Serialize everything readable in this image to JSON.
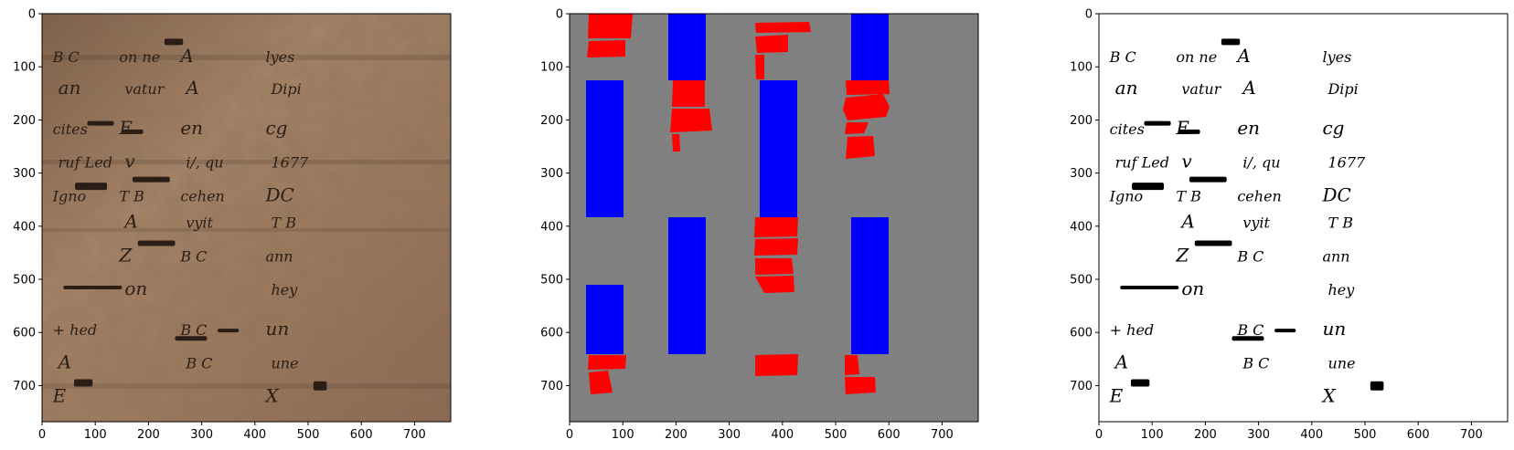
{
  "figure": {
    "panels": [
      {
        "id": "photo",
        "description_kind": "photograph",
        "background": "#a07a5e",
        "ink": "#2a1e16",
        "xticks": [
          "0",
          "100",
          "200",
          "300",
          "400",
          "500",
          "600",
          "700"
        ],
        "yticks": [
          "0",
          "100",
          "200",
          "300",
          "400",
          "500",
          "600",
          "700"
        ]
      },
      {
        "id": "segmentation",
        "background": "#808080",
        "colors": {
          "red": "#ff0000",
          "blue": "#0000ff"
        },
        "xticks": [
          "0",
          "100",
          "200",
          "300",
          "400",
          "500",
          "600",
          "700"
        ],
        "yticks": [
          "0",
          "100",
          "200",
          "300",
          "400",
          "500",
          "600",
          "700"
        ]
      },
      {
        "id": "binarized",
        "background": "#ffffff",
        "ink": "#000000",
        "xticks": [
          "0",
          "100",
          "200",
          "300",
          "400",
          "500",
          "600",
          "700"
        ],
        "yticks": [
          "0",
          "100",
          "200",
          "300",
          "400",
          "500",
          "600",
          "700"
        ]
      }
    ]
  },
  "handwriting": {
    "c0": [
      "B C",
      "an",
      "cites",
      "ruf Led",
      "Igno",
      "",
      "",
      "",
      "+ hed",
      "A",
      "E"
    ],
    "c1": [
      "on ne",
      "vatur",
      "E",
      "v",
      "T B",
      "A",
      "Z",
      "on",
      "",
      "",
      ""
    ],
    "c2": [
      "A",
      "A",
      "en",
      "i/, qu",
      "cehen",
      "vyit",
      "B C",
      "",
      "B C",
      "B C",
      ""
    ],
    "c3": [
      "lyes",
      "Dipi",
      "cg",
      "1677",
      "DC",
      "T B",
      "ann",
      "hey",
      "un",
      "une",
      "X"
    ]
  }
}
